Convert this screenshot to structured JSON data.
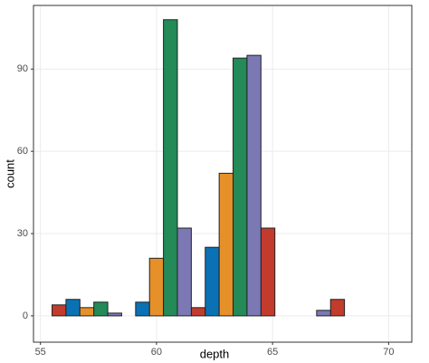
{
  "chart_data": {
    "type": "histogram",
    "x_label": "depth",
    "y_label": "count",
    "bins": [
      55.5,
      58.5,
      61.5,
      64.5,
      67.5,
      70.5
    ],
    "series": [
      {
        "color": "#c23b2c",
        "values": [
          4,
          0,
          3,
          32,
          6
        ]
      },
      {
        "color": "#0a72b4",
        "values": [
          6,
          5,
          25,
          0,
          0
        ]
      },
      {
        "color": "#e6902a",
        "values": [
          3,
          21,
          52,
          0,
          0
        ]
      },
      {
        "color": "#238a58",
        "values": [
          5,
          108,
          94,
          0,
          0
        ]
      },
      {
        "color": "#7b78b4",
        "values": [
          1,
          32,
          95,
          2,
          0
        ]
      }
    ],
    "xlim": [
      54.7,
      71.0
    ],
    "xticks": [
      55,
      60,
      65,
      70
    ],
    "ylim": [
      -9.6,
      113.2
    ],
    "yticks": [
      0,
      30,
      60,
      90
    ],
    "grid": true
  }
}
